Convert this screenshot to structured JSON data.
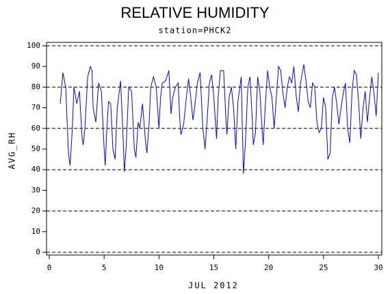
{
  "chart_data": {
    "type": "line",
    "title": "RELATIVE HUMIDITY",
    "subtitle": "station=PHCK2",
    "x_label": "JUL 2012",
    "y_label": "AVG_RH",
    "xlim": [
      0,
      30
    ],
    "ylim": [
      0,
      100
    ],
    "xticks": [
      0,
      5,
      10,
      15,
      20,
      25,
      30
    ],
    "yticks": [
      0,
      10,
      20,
      30,
      40,
      50,
      60,
      70,
      80,
      90,
      100
    ],
    "grid_lines": [
      0,
      20,
      40,
      60,
      80,
      100
    ],
    "series": [
      {
        "name": "AVG_RH",
        "color": "#0000ff",
        "x": [
          1.0,
          1.25,
          1.5,
          1.75,
          1.9,
          2.1,
          2.25,
          2.5,
          2.75,
          3.0,
          3.1,
          3.25,
          3.5,
          3.75,
          3.9,
          4.0,
          4.25,
          4.5,
          4.75,
          5.0,
          5.1,
          5.25,
          5.4,
          5.6,
          5.8,
          6.0,
          6.2,
          6.5,
          6.7,
          6.85,
          7.0,
          7.25,
          7.5,
          7.75,
          7.9,
          8.1,
          8.25,
          8.5,
          8.75,
          8.9,
          9.1,
          9.25,
          9.5,
          9.75,
          10.0,
          10.15,
          10.3,
          10.6,
          10.9,
          11.1,
          11.25,
          11.5,
          11.75,
          11.9,
          12.0,
          12.25,
          12.5,
          12.7,
          12.9,
          13.1,
          13.25,
          13.5,
          13.75,
          14.0,
          14.2,
          14.4,
          14.6,
          14.8,
          15.0,
          15.25,
          15.4,
          15.6,
          15.9,
          16.1,
          16.2,
          16.4,
          16.6,
          16.8,
          17.0,
          17.2,
          17.5,
          17.6,
          17.7,
          17.9,
          18.1,
          18.3,
          18.5,
          18.6,
          18.8,
          19.0,
          19.2,
          19.4,
          19.5,
          19.7,
          19.9,
          20.1,
          20.3,
          20.5,
          20.7,
          20.9,
          21.1,
          21.3,
          21.5,
          21.7,
          21.9,
          22.1,
          22.3,
          22.5,
          22.7,
          22.9,
          23.2,
          23.4,
          23.6,
          23.8,
          24.0,
          24.2,
          24.4,
          24.6,
          24.8,
          25.0,
          25.2,
          25.4,
          25.6,
          25.8,
          26.0,
          26.2,
          26.4,
          26.6,
          26.8,
          27.0,
          27.2,
          27.4,
          27.6,
          27.8,
          28.0,
          28.2,
          28.4,
          28.6,
          28.8,
          29.0,
          29.2,
          29.4,
          29.6,
          29.8,
          30.0
        ],
        "values": [
          72,
          87,
          80,
          48,
          42,
          60,
          80,
          72,
          78,
          55,
          52,
          60,
          85,
          90,
          88,
          70,
          63,
          82,
          78,
          50,
          42,
          60,
          73,
          72,
          50,
          45,
          70,
          83,
          60,
          39,
          50,
          80,
          78,
          50,
          46,
          63,
          60,
          72,
          55,
          48,
          62,
          80,
          85,
          80,
          60,
          75,
          82,
          83,
          88,
          67,
          75,
          80,
          82,
          64,
          57,
          62,
          75,
          84,
          75,
          64,
          70,
          82,
          87,
          60,
          50,
          65,
          82,
          86,
          75,
          55,
          75,
          88,
          88,
          65,
          57,
          75,
          80,
          70,
          50,
          73,
          85,
          60,
          38,
          55,
          80,
          85,
          65,
          52,
          58,
          85,
          78,
          60,
          52,
          72,
          88,
          80,
          75,
          60,
          75,
          90,
          88,
          77,
          70,
          80,
          85,
          82,
          90,
          76,
          68,
          82,
          91,
          83,
          73,
          70,
          82,
          80,
          63,
          58,
          60,
          75,
          70,
          45,
          48,
          75,
          80,
          72,
          62,
          70,
          77,
          82,
          60,
          53,
          78,
          88,
          86,
          73,
          55,
          70,
          78,
          63,
          75,
          85,
          77,
          66,
          87
        ]
      }
    ]
  }
}
